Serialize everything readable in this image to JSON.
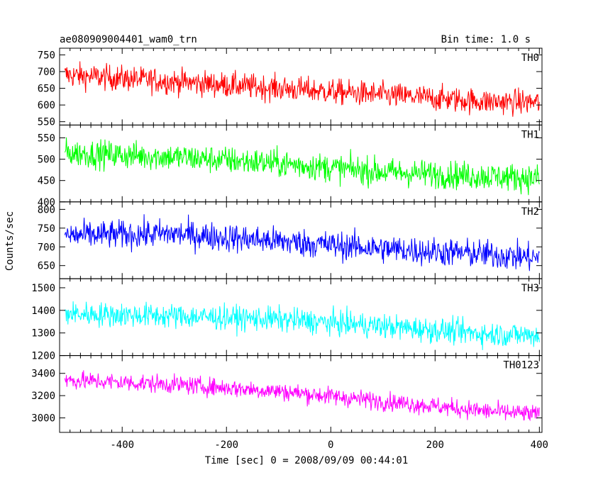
{
  "chart_data": {
    "type": "line",
    "title": "ae080909004401_wam0_trn",
    "subtitle": "Bin time: 1.0 s",
    "xlabel": "Time [sec] 0 = 2008/09/09 00:44:01",
    "ylabel": "Counts/sec",
    "xlim": [
      -520,
      405
    ],
    "x_ticks": [
      -400,
      -200,
      0,
      200,
      400
    ],
    "x_range": [
      -510,
      400
    ],
    "grid": false,
    "panels": [
      {
        "name": "TH0",
        "color": "#ff0000",
        "ylim": [
          540,
          770
        ],
        "yticks": [
          550,
          600,
          650,
          700,
          750
        ],
        "trend": [
          [
            -510,
            690
          ],
          [
            -300,
            670
          ],
          [
            -100,
            650
          ],
          [
            100,
            630
          ],
          [
            300,
            610
          ],
          [
            400,
            608
          ]
        ],
        "noise": 35,
        "yrange": [
          548,
          768
        ]
      },
      {
        "name": "TH1",
        "color": "#00ff00",
        "ylim": [
          400,
          580
        ],
        "yticks": [
          400,
          450,
          500,
          550
        ],
        "trend": [
          [
            -510,
            515
          ],
          [
            -300,
            505
          ],
          [
            -100,
            490
          ],
          [
            100,
            470
          ],
          [
            300,
            460
          ],
          [
            400,
            455
          ]
        ],
        "noise": 30,
        "yrange": [
          402,
          578
        ]
      },
      {
        "name": "TH2",
        "color": "#0000ff",
        "ylim": [
          615,
          820
        ],
        "yticks": [
          650,
          700,
          750,
          800
        ],
        "trend": [
          [
            -510,
            730
          ],
          [
            -300,
            735
          ],
          [
            -100,
            715
          ],
          [
            100,
            695
          ],
          [
            300,
            680
          ],
          [
            400,
            670
          ]
        ],
        "noise": 35,
        "yrange": [
          617,
          818
        ]
      },
      {
        "name": "TH3",
        "color": "#00ffff",
        "ylim": [
          1200,
          1540
        ],
        "yticks": [
          1200,
          1300,
          1400,
          1500
        ],
        "trend": [
          [
            -510,
            1385
          ],
          [
            -300,
            1375
          ],
          [
            -100,
            1360
          ],
          [
            100,
            1330
          ],
          [
            300,
            1295
          ],
          [
            400,
            1290
          ]
        ],
        "noise": 50,
        "yrange": [
          1205,
          1538
        ]
      },
      {
        "name": "TH0123",
        "color": "#ff00ff",
        "ylim": [
          2870,
          3560
        ],
        "yticks": [
          3000,
          3200,
          3400
        ],
        "trend": [
          [
            -510,
            3340
          ],
          [
            -300,
            3300
          ],
          [
            -100,
            3240
          ],
          [
            100,
            3150
          ],
          [
            300,
            3060
          ],
          [
            400,
            3030
          ]
        ],
        "noise": 75,
        "yrange": [
          2880,
          3550
        ]
      }
    ]
  }
}
